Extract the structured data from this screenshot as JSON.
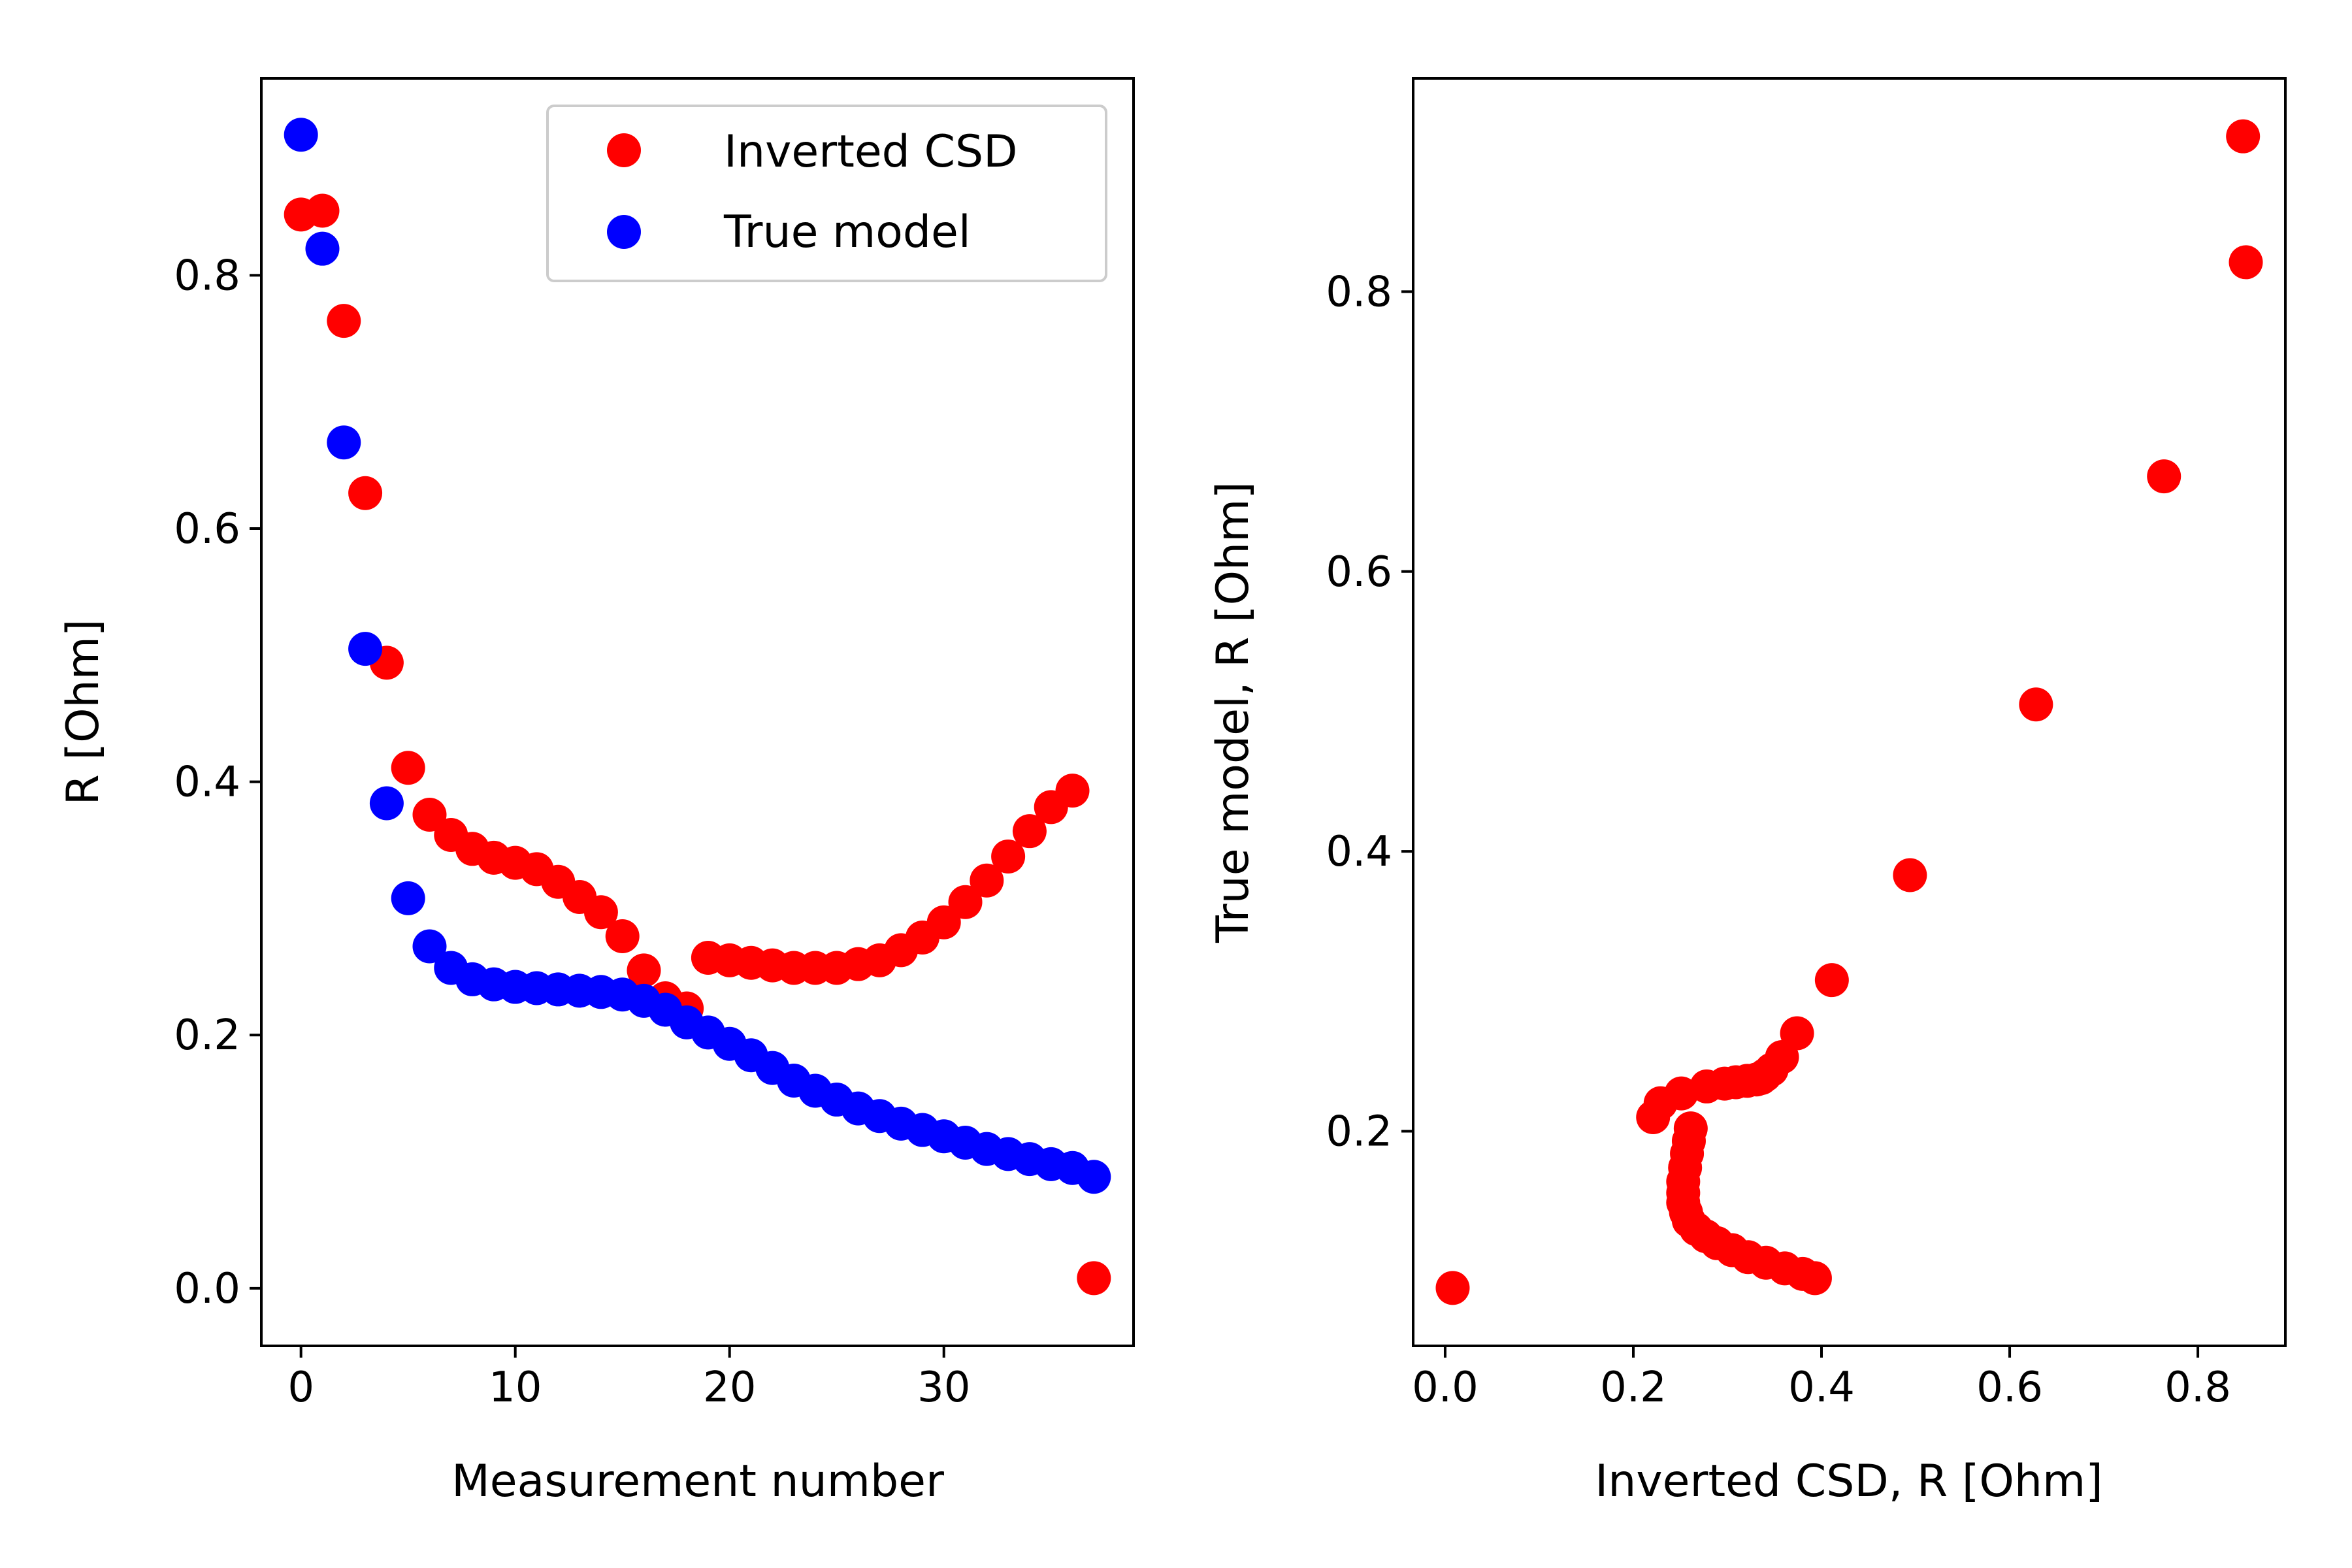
{
  "colors": {
    "inverted": "#ff0000",
    "true_model": "#0000ff",
    "frame": "#000000",
    "background": "#ffffff"
  },
  "chart_data": [
    {
      "type": "scatter",
      "xlabel": "Measurement number",
      "ylabel": "R [Ohm]",
      "xlim": [
        -1.85,
        38.85
      ],
      "ylim": [
        -0.0455,
        0.9555
      ],
      "xticks": [
        0,
        10,
        20,
        30
      ],
      "xtick_labels": [
        "0",
        "10",
        "20",
        "30"
      ],
      "yticks": [
        0.0,
        0.2,
        0.4,
        0.6,
        0.8
      ],
      "ytick_labels": [
        "0.0",
        "0.2",
        "0.4",
        "0.6",
        "0.8"
      ],
      "grid": false,
      "legend": {
        "placement": "top-right",
        "entries": [
          "Inverted CSD",
          "True model"
        ]
      },
      "x": [
        0,
        1,
        2,
        3,
        4,
        5,
        6,
        7,
        8,
        9,
        10,
        11,
        12,
        13,
        14,
        15,
        16,
        17,
        18,
        19,
        20,
        21,
        22,
        23,
        24,
        25,
        26,
        27,
        28,
        29,
        30,
        31,
        32,
        33,
        34,
        35,
        36,
        37
      ],
      "series": [
        {
          "name": "Inverted CSD",
          "color": "#ff0000",
          "values": [
            0.848,
            0.851,
            0.764,
            0.628,
            0.494,
            0.411,
            0.374,
            0.358,
            0.347,
            0.34,
            0.336,
            0.331,
            0.321,
            0.309,
            0.297,
            0.278,
            0.251,
            0.229,
            0.221,
            0.261,
            0.259,
            0.257,
            0.255,
            0.253,
            0.253,
            0.253,
            0.256,
            0.259,
            0.267,
            0.277,
            0.289,
            0.305,
            0.322,
            0.341,
            0.361,
            0.38,
            0.393,
            0.008
          ]
        },
        {
          "name": "True model",
          "color": "#0000ff",
          "values": [
            0.911,
            0.821,
            0.668,
            0.505,
            0.383,
            0.308,
            0.27,
            0.253,
            0.244,
            0.24,
            0.238,
            0.237,
            0.236,
            0.235,
            0.234,
            0.232,
            0.227,
            0.22,
            0.21,
            0.202,
            0.193,
            0.184,
            0.174,
            0.164,
            0.156,
            0.149,
            0.142,
            0.136,
            0.13,
            0.125,
            0.12,
            0.115,
            0.11,
            0.106,
            0.102,
            0.098,
            0.095,
            0.088
          ]
        }
      ]
    },
    {
      "type": "scatter",
      "xlabel": "Inverted CSD, R [Ohm]",
      "ylabel": "True model, R [Ohm]",
      "xlim": [
        -0.034,
        0.893
      ],
      "ylim": [
        0.0466,
        0.9524
      ],
      "xticks": [
        0.0,
        0.2,
        0.4,
        0.6,
        0.8
      ],
      "xtick_labels": [
        "0.0",
        "0.2",
        "0.4",
        "0.6",
        "0.8"
      ],
      "yticks": [
        0.2,
        0.4,
        0.6,
        0.8
      ],
      "ytick_labels": [
        "0.2",
        "0.4",
        "0.6",
        "0.8"
      ],
      "grid": false,
      "series": [
        {
          "color": "#ff0000",
          "x": [
            0.848,
            0.851,
            0.764,
            0.628,
            0.494,
            0.411,
            0.374,
            0.358,
            0.347,
            0.34,
            0.336,
            0.331,
            0.321,
            0.309,
            0.297,
            0.278,
            0.251,
            0.229,
            0.221,
            0.261,
            0.259,
            0.257,
            0.255,
            0.253,
            0.253,
            0.253,
            0.256,
            0.259,
            0.267,
            0.277,
            0.289,
            0.305,
            0.322,
            0.341,
            0.361,
            0.38,
            0.393,
            0.008
          ],
          "y": [
            0.911,
            0.821,
            0.668,
            0.505,
            0.383,
            0.308,
            0.27,
            0.253,
            0.244,
            0.24,
            0.238,
            0.237,
            0.236,
            0.235,
            0.234,
            0.232,
            0.227,
            0.22,
            0.21,
            0.202,
            0.193,
            0.184,
            0.174,
            0.164,
            0.156,
            0.149,
            0.142,
            0.136,
            0.13,
            0.125,
            0.12,
            0.115,
            0.11,
            0.106,
            0.102,
            0.098,
            0.095,
            0.088
          ]
        }
      ]
    }
  ]
}
